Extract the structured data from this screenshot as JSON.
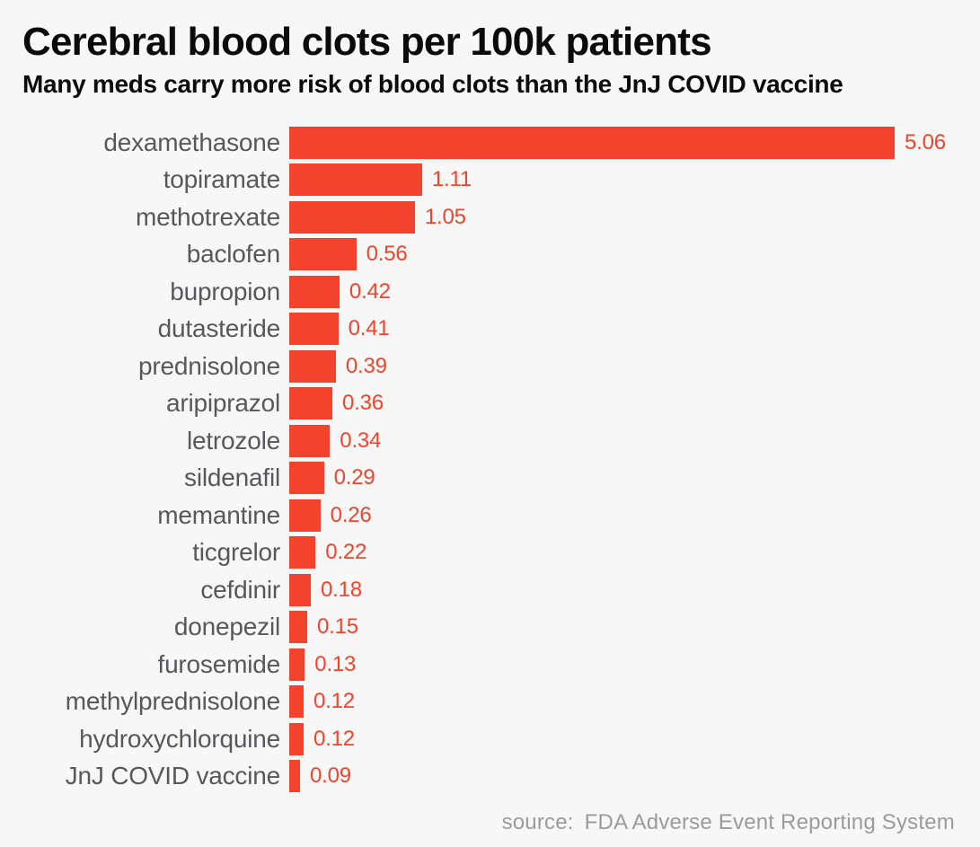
{
  "page": {
    "background_color": "#f7f7f7"
  },
  "header": {
    "title": "Cerebral blood clots per 100k patients",
    "subtitle": "Many meds carry more risk of blood clots than the JnJ COVID vaccine"
  },
  "footer": {
    "source_label": "source:",
    "source_text": "FDA Adverse Event Reporting System"
  },
  "chart_data": {
    "type": "bar",
    "orientation": "horizontal",
    "title": "Cerebral blood clots per 100k patients",
    "subtitle": "Many meds carry more risk of blood clots than the JnJ COVID vaccine",
    "xlabel": "",
    "ylabel": "",
    "xlim": [
      0,
      5.06
    ],
    "grid": false,
    "legend": false,
    "bar_color": "#f4432c",
    "value_label_color": "#f4432c",
    "category_label_color": "#58585a",
    "source": "FDA Adverse Event Reporting System",
    "categories": [
      "dexamethasone",
      "topiramate",
      "methotrexate",
      "baclofen",
      "bupropion",
      "dutasteride",
      "prednisolone",
      "aripiprazol",
      "letrozole",
      "sildenafil",
      "memantine",
      "ticgrelor",
      "cefdinir",
      "donepezil",
      "furosemide",
      "methylprednisolone",
      "hydroxychlorquine",
      "JnJ COVID vaccine"
    ],
    "values": [
      5.06,
      1.11,
      1.05,
      0.56,
      0.42,
      0.41,
      0.39,
      0.36,
      0.34,
      0.29,
      0.26,
      0.22,
      0.18,
      0.15,
      0.13,
      0.12,
      0.12,
      0.09
    ],
    "value_labels": [
      "5.06",
      "1.11",
      "1.05",
      "0.56",
      "0.42",
      "0.41",
      "0.39",
      "0.36",
      "0.34",
      "0.29",
      "0.26",
      "0.22",
      "0.18",
      "0.15",
      "0.13",
      "0.12",
      "0.12",
      "0.09"
    ]
  }
}
